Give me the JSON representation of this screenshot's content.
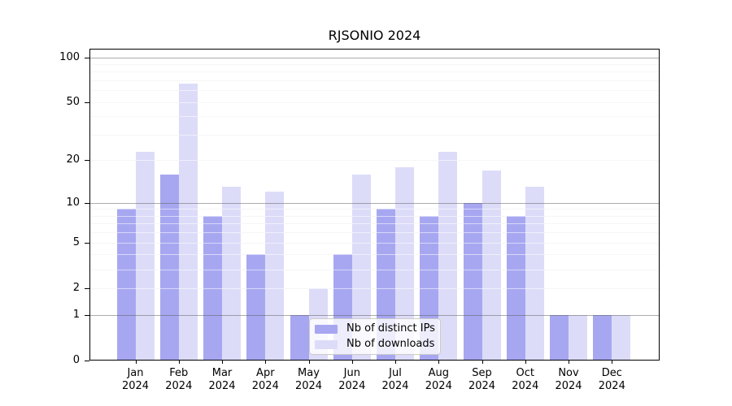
{
  "title": "RJSONIO 2024",
  "chart_data": {
    "type": "bar",
    "title": "RJSONIO 2024",
    "categories": [
      "Jan 2024",
      "Feb 2024",
      "Mar 2024",
      "Apr 2024",
      "May 2024",
      "Jun 2024",
      "Jul 2024",
      "Aug 2024",
      "Sep 2024",
      "Oct 2024",
      "Nov 2024",
      "Dec 2024"
    ],
    "series": [
      {
        "name": "Nb of distinct IPs",
        "color": "#a7a7f1",
        "values": [
          9,
          16,
          8,
          4,
          1,
          4,
          9,
          8,
          10,
          8,
          1,
          1
        ]
      },
      {
        "name": "Nb of downloads",
        "color": "#dcdcf9",
        "values": [
          23,
          67,
          13,
          12,
          2,
          16,
          18,
          23,
          17,
          13,
          1,
          1
        ]
      }
    ],
    "xlabel": "",
    "ylabel": "",
    "yscale": "log10(value+1)",
    "ylim": [
      0,
      115
    ],
    "yticks": [
      100,
      50,
      20,
      10,
      5,
      2,
      1,
      0
    ],
    "ytick_labels": [
      "100",
      "50",
      "20",
      "10",
      "5",
      "2",
      "1",
      "0"
    ],
    "grid_major": [
      1,
      10,
      100
    ],
    "grid_minor": [
      2,
      3,
      4,
      5,
      6,
      7,
      8,
      9,
      20,
      30,
      40,
      50,
      60,
      70,
      80,
      90
    ],
    "grid": "horizontal, light minor + gray major, drawn over bars",
    "legend_position": "lower center"
  }
}
